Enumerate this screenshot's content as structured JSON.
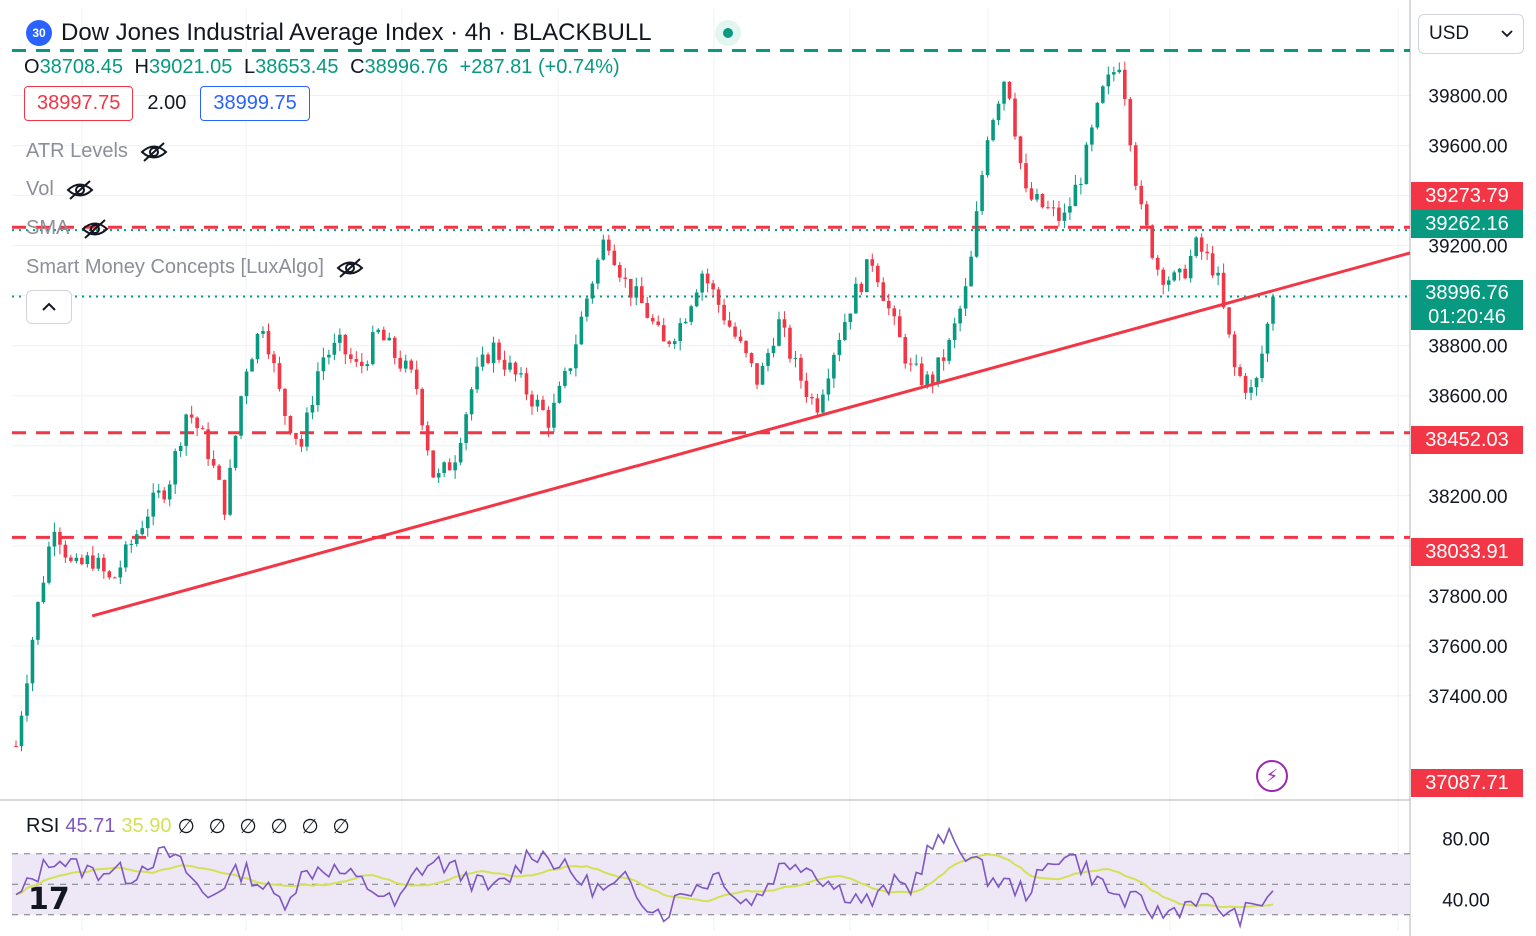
{
  "header": {
    "symbol_badge": "30",
    "title": "Dow Jones Industrial Average Index · 4h · BLACKBULL",
    "ohlc": {
      "o_label": "O",
      "o": "38708.45",
      "h_label": "H",
      "h": "39021.05",
      "l_label": "L",
      "l": "38653.45",
      "c_label": "C",
      "c": "38996.76",
      "change": "+287.81 (+0.74%)"
    },
    "bid": "38997.75",
    "spread": "2.00",
    "ask": "38999.75"
  },
  "indicators": [
    {
      "label": "ATR Levels",
      "icon": "eye-off-icon"
    },
    {
      "label": "Vol",
      "icon": "eye-off-icon"
    },
    {
      "label": "SMA",
      "icon": "eye-off-icon"
    },
    {
      "label": "Smart Money Concepts [LuxAlgo]",
      "icon": "eye-off-icon"
    }
  ],
  "toolbar": {
    "collapse_icon": "chevron-up-icon",
    "currency": "USD",
    "currency_icon": "chevron-down-icon"
  },
  "colors": {
    "up": "#089981",
    "down": "#f23645",
    "trendline": "#f23645",
    "teal_line": "#089981",
    "rsi": "#7e57c2",
    "rsi_ma": "#d4e157",
    "band": "#ede7f6"
  },
  "price_tags": [
    {
      "value": "39273.79",
      "color": "#f23645"
    },
    {
      "value": "39262.16",
      "color": "#089981"
    },
    {
      "value": "38996.76",
      "sub": "01:20:46",
      "color": "#089981"
    },
    {
      "value": "38452.03",
      "color": "#f23645"
    },
    {
      "value": "38033.91",
      "color": "#f23645"
    },
    {
      "value": "37087.71",
      "color": "#f23645"
    }
  ],
  "rsi": {
    "label": "RSI",
    "value": "45.71",
    "ma_value": "35.90",
    "nulls": "∅ ∅ ∅ ∅ ∅ ∅",
    "ticks": [
      "80.00",
      "40.00"
    ]
  },
  "brand_logo": "17",
  "chart_data": {
    "type": "candlestick",
    "title": "Dow Jones Industrial Average Index · 4h · BLACKBULL",
    "ylim": [
      37000,
      40150
    ],
    "y_ticks": [
      37400,
      37600,
      37800,
      38000,
      38200,
      38400,
      38600,
      38800,
      39000,
      39200,
      39400,
      39600,
      39800
    ],
    "y_tick_labels": [
      "37400.00",
      "37600.00",
      "37800.00",
      "38000.00",
      "38200.00",
      "38400.00",
      "38600.00",
      "38800.00",
      "39000.00",
      "39200.00",
      "39400.00",
      "39600.00",
      "39800.00"
    ],
    "close_path": [
      37200,
      37700,
      38100,
      37900,
      37950,
      37850,
      38000,
      38150,
      38250,
      38550,
      38400,
      38150,
      38700,
      38900,
      38550,
      38400,
      38750,
      38800,
      38700,
      38850,
      38750,
      38650,
      38250,
      38350,
      38650,
      38800,
      38700,
      38600,
      38500,
      38700,
      39000,
      39250,
      39050,
      38950,
      38800,
      38900,
      39100,
      38950,
      38800,
      38650,
      38900,
      38700,
      38550,
      38800,
      39000,
      39150,
      38900,
      38700,
      38650,
      38800,
      39050,
      39650,
      39900,
      39400,
      39350,
      39300,
      39500,
      39800,
      39950,
      39350,
      39100,
      39050,
      39200,
      39100,
      38700,
      38600,
      38996
    ],
    "horizontal_levels": [
      {
        "price": 39980,
        "style": "dashed",
        "color": "#089981"
      },
      {
        "price": 39273.79,
        "style": "dashed",
        "color": "#f23645"
      },
      {
        "price": 39262.16,
        "style": "dotted",
        "color": "#089981"
      },
      {
        "price": 38996.76,
        "style": "dotted",
        "color": "#089981"
      },
      {
        "price": 38452.03,
        "style": "dashed",
        "color": "#f23645"
      },
      {
        "price": 38033.91,
        "style": "dashed",
        "color": "#f23645"
      }
    ],
    "trendline": {
      "from_index": 4,
      "from_price": 37720,
      "to_index": 66,
      "to_price": 39020
    },
    "rsi_series": [
      40,
      55,
      68,
      62,
      58,
      60,
      55,
      66,
      70,
      58,
      40,
      52,
      60,
      48,
      38,
      55,
      62,
      58,
      52,
      45,
      35,
      58,
      65,
      60,
      52,
      46,
      55,
      72,
      68,
      58,
      50,
      45,
      52,
      40,
      30,
      45,
      50,
      58,
      38,
      42,
      60,
      66,
      58,
      48,
      42,
      38,
      50,
      48,
      75,
      80,
      70,
      55,
      50,
      45,
      58,
      72,
      62,
      50,
      40,
      38,
      30,
      34,
      42,
      36,
      28,
      34,
      46
    ],
    "rsi_ylim": [
      20,
      100
    ]
  }
}
